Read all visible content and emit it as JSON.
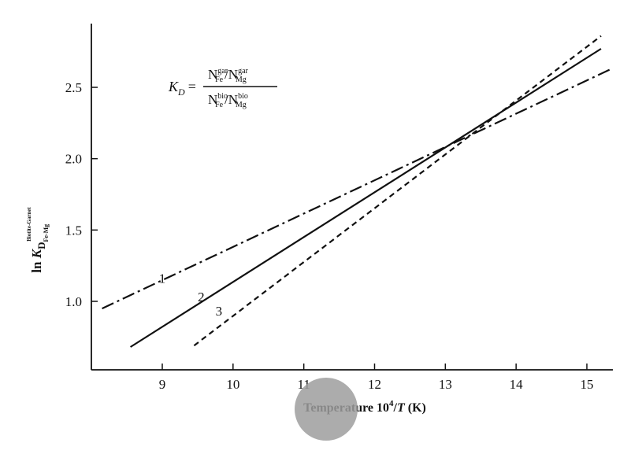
{
  "chart_data": {
    "type": "line",
    "xlabel": {
      "prefix": "Temperature 10",
      "sup": "4",
      "mid": "/",
      "italic": "T",
      "suffix": " (K)"
    },
    "ylabel": {
      "prefix": "ln ",
      "italic": "K",
      "sub": "D",
      "subsub": "Fe-Mg",
      "sup": "Biotite-Garnet"
    },
    "xlim": [
      8.1,
      15.4
    ],
    "ylim": [
      0.5,
      2.85
    ],
    "xticks": [
      "9",
      "10",
      "11",
      "12",
      "13",
      "14",
      "15"
    ],
    "yticks": [
      "1.0",
      "1.5",
      "2.0",
      "2.5"
    ],
    "series": [
      {
        "name": "1",
        "style": "dash-dot",
        "x": [
          8.15,
          15.35
        ],
        "y": [
          0.95,
          2.63
        ],
        "label_at": [
          9.0,
          1.13
        ]
      },
      {
        "name": "2",
        "style": "solid",
        "x": [
          8.55,
          15.2
        ],
        "y": [
          0.68,
          2.77
        ],
        "label_at": [
          9.55,
          1.0
        ]
      },
      {
        "name": "3",
        "style": "dashed",
        "x": [
          9.45,
          15.2
        ],
        "y": [
          0.69,
          2.86
        ],
        "label_at": [
          9.8,
          0.9
        ]
      }
    ],
    "annotation": {
      "lhs_italic": "K",
      "lhs_sub": "D",
      "eq": "=",
      "num": [
        {
          "base": "N",
          "sup": "gar",
          "sub": "Fe"
        },
        {
          "base": "/N",
          "sup": "gar",
          "sub": "Mg"
        }
      ],
      "den": [
        {
          "base": "N",
          "sup": "bio",
          "sub": "Fe"
        },
        {
          "base": "/N",
          "sup": "bio",
          "sub": "Mg"
        }
      ]
    }
  }
}
